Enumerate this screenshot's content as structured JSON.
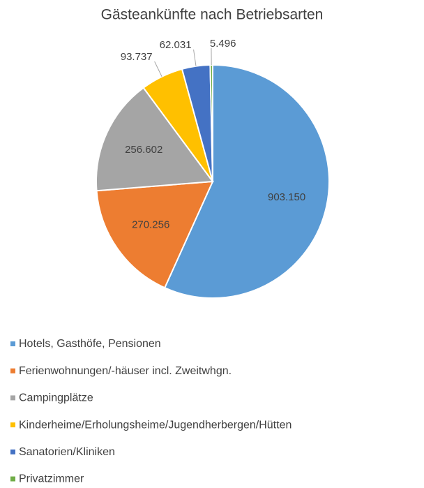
{
  "chart_data": {
    "type": "pie",
    "title": "Gästeankünfte nach Betriebsarten",
    "categories": [
      "Hotels, Gasthöfe, Pensionen",
      "Ferienwohnungen/-häuser incl. Zweitwhgn.",
      "Campingplätze",
      "Kinderheime/Erholungsheime/Jugendherbergen/Hütten",
      "Sanatorien/Kliniken",
      "Privatzimmer"
    ],
    "values": [
      903150,
      270256,
      256602,
      93737,
      62031,
      5496
    ],
    "value_labels": [
      "903.150",
      "270.256",
      "256.602",
      "93.737",
      "62.031",
      "5.496"
    ],
    "colors": [
      "#5b9bd5",
      "#ed7d31",
      "#a5a5a5",
      "#ffc000",
      "#4472c4",
      "#70ad47"
    ],
    "legend": "bottom"
  }
}
